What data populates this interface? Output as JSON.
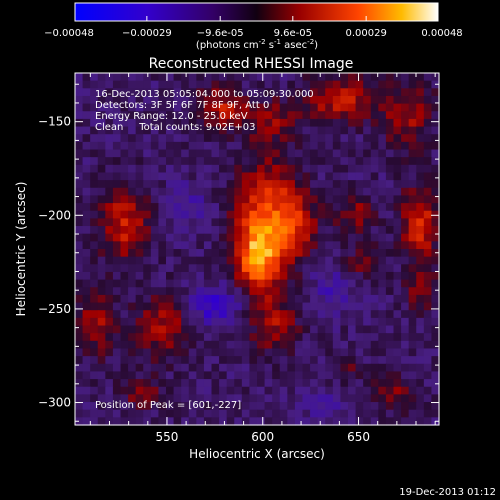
{
  "colorbar": {
    "ticks": [
      "-0.00048",
      "-0.00029",
      "-9.6e-05",
      "9.6e-05",
      "0.00029",
      "0.00048"
    ],
    "units_main": "(photons cm",
    "units_exp1": "-2",
    "units_mid": " s",
    "units_exp2": "-1",
    "units_end": " asec",
    "units_exp3": "-2",
    "units_close": ")"
  },
  "title": "Reconstructed RHESSI Image",
  "annotations": {
    "time_range": "16-Dec-2013 05:05:04.000 to 05:09:30.000",
    "detectors": "Detectors: 3F 5F 6F 7F 8F 9F, Att 0",
    "energy": "Energy Range: 12.0 - 25.0 keV",
    "clean": "Clean     Total counts: 9.02E+03",
    "peak": "Position of Peak = [601,-227]"
  },
  "footer_timestamp": "19-Dec-2013 01:12",
  "chart_data": {
    "type": "heatmap",
    "title": "Reconstructed RHESSI Image",
    "xlabel": "Heliocentric X (arcsec)",
    "ylabel": "Heliocentric Y (arcsec)",
    "xlim": [
      502,
      692
    ],
    "ylim": [
      -312,
      -124
    ],
    "xticks": [
      550,
      600,
      650
    ],
    "yticks": [
      -150,
      -200,
      -250,
      -300
    ],
    "color_range": [
      -0.00048,
      0.00048
    ],
    "peak": [
      601,
      -227
    ],
    "blobs": [
      {
        "x": 598,
        "y": -222,
        "sx": 9,
        "sy": 13,
        "amp": 0.00042
      },
      {
        "x": 601,
        "y": -192,
        "sx": 11,
        "sy": 16,
        "amp": 0.00026
      },
      {
        "x": 617,
        "y": -205,
        "sx": 8,
        "sy": 14,
        "amp": 0.00022
      },
      {
        "x": 606,
        "y": -258,
        "sx": 9,
        "sy": 11,
        "amp": 0.00018
      },
      {
        "x": 604,
        "y": -150,
        "sx": 10,
        "sy": 8,
        "amp": 0.00016
      },
      {
        "x": 578,
        "y": -142,
        "sx": 9,
        "sy": 7,
        "amp": 0.00022
      },
      {
        "x": 640,
        "y": -138,
        "sx": 12,
        "sy": 8,
        "amp": 0.00024
      },
      {
        "x": 675,
        "y": -146,
        "sx": 10,
        "sy": 12,
        "amp": 0.00018
      },
      {
        "x": 682,
        "y": -205,
        "sx": 7,
        "sy": 14,
        "amp": 0.00026
      },
      {
        "x": 683,
        "y": -240,
        "sx": 6,
        "sy": 8,
        "amp": 0.00014
      },
      {
        "x": 528,
        "y": -205,
        "sx": 9,
        "sy": 14,
        "amp": 0.00024
      },
      {
        "x": 513,
        "y": -258,
        "sx": 7,
        "sy": 12,
        "amp": 0.00018
      },
      {
        "x": 548,
        "y": -260,
        "sx": 10,
        "sy": 11,
        "amp": 0.0002
      },
      {
        "x": 537,
        "y": -295,
        "sx": 7,
        "sy": 6,
        "amp": 0.00014
      },
      {
        "x": 648,
        "y": -200,
        "sx": 7,
        "sy": 8,
        "amp": 0.00016
      },
      {
        "x": 652,
        "y": -225,
        "sx": 6,
        "sy": 6,
        "amp": 0.00012
      },
      {
        "x": 670,
        "y": -295,
        "sx": 8,
        "sy": 6,
        "amp": 0.00016
      },
      {
        "x": 643,
        "y": -283,
        "sx": 6,
        "sy": 6,
        "amp": 0.0001
      },
      {
        "x": 575,
        "y": -248,
        "sx": 9,
        "sy": 7,
        "amp": -0.00022
      },
      {
        "x": 560,
        "y": -195,
        "sx": 8,
        "sy": 8,
        "amp": -0.00012
      },
      {
        "x": 635,
        "y": -240,
        "sx": 9,
        "sy": 9,
        "amp": -0.0001
      },
      {
        "x": 630,
        "y": -300,
        "sx": 10,
        "sy": 6,
        "amp": -0.0001
      }
    ]
  }
}
